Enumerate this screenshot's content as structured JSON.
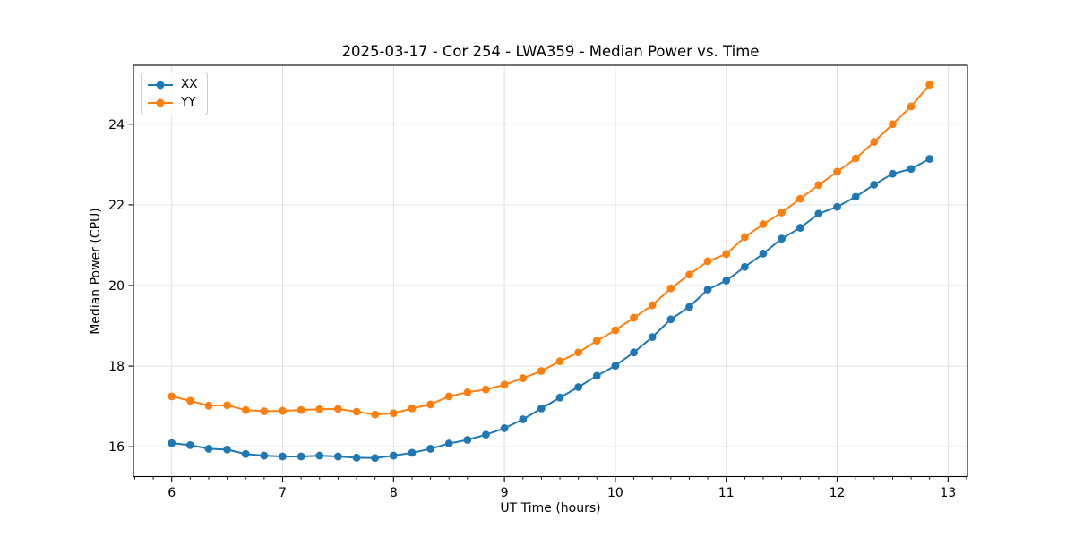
{
  "chart_data": {
    "type": "line",
    "title": "2025-03-17 - Cor 254 - LWA359 - Median Power vs. Time",
    "xlabel": "UT Time (hours)",
    "ylabel": "Median Power (CPU)",
    "xlim": [
      5.655,
      13.175
    ],
    "ylim": [
      15.26,
      25.46
    ],
    "x_major_ticks": [
      6,
      7,
      8,
      9,
      10,
      11,
      12,
      13
    ],
    "y_major_ticks": [
      16,
      18,
      20,
      22,
      24
    ],
    "x_minor_interval": 0.16667,
    "grid": "major-both",
    "legend_position": "upper-left",
    "marker": "circle",
    "x": [
      6.0,
      6.167,
      6.333,
      6.5,
      6.667,
      6.833,
      7.0,
      7.167,
      7.333,
      7.5,
      7.667,
      7.833,
      8.0,
      8.167,
      8.333,
      8.5,
      8.667,
      8.833,
      9.0,
      9.167,
      9.333,
      9.5,
      9.667,
      9.833,
      10.0,
      10.167,
      10.333,
      10.5,
      10.667,
      10.833,
      11.0,
      11.167,
      11.333,
      11.5,
      11.667,
      11.833,
      12.0,
      12.167,
      12.333,
      12.5,
      12.667,
      12.833
    ],
    "series": [
      {
        "name": "XX",
        "color": "#1f77b4",
        "values": [
          16.09,
          16.04,
          15.95,
          15.93,
          15.82,
          15.78,
          15.76,
          15.76,
          15.78,
          15.76,
          15.73,
          15.72,
          15.78,
          15.85,
          15.95,
          16.08,
          16.17,
          16.3,
          16.46,
          16.68,
          16.95,
          17.22,
          17.48,
          17.76,
          18.01,
          18.34,
          18.72,
          19.16,
          19.47,
          19.9,
          20.12,
          20.46,
          20.79,
          21.16,
          21.43,
          21.78,
          21.95,
          22.2,
          22.5,
          22.77,
          22.89,
          23.14
        ]
      },
      {
        "name": "YY",
        "color": "#ff7f0e",
        "values": [
          17.25,
          17.14,
          17.02,
          17.03,
          16.91,
          16.88,
          16.89,
          16.91,
          16.93,
          16.94,
          16.87,
          16.8,
          16.83,
          16.95,
          17.05,
          17.25,
          17.35,
          17.42,
          17.54,
          17.7,
          17.88,
          18.12,
          18.34,
          18.63,
          18.89,
          19.2,
          19.51,
          19.93,
          20.27,
          20.6,
          20.78,
          21.2,
          21.52,
          21.81,
          22.15,
          22.49,
          22.82,
          23.15,
          23.56,
          24.0,
          24.44,
          24.98
        ]
      }
    ],
    "colors": {
      "grid": "#e0e0e0",
      "spine": "#000000",
      "tick": "#000000",
      "text": "#000000"
    }
  }
}
